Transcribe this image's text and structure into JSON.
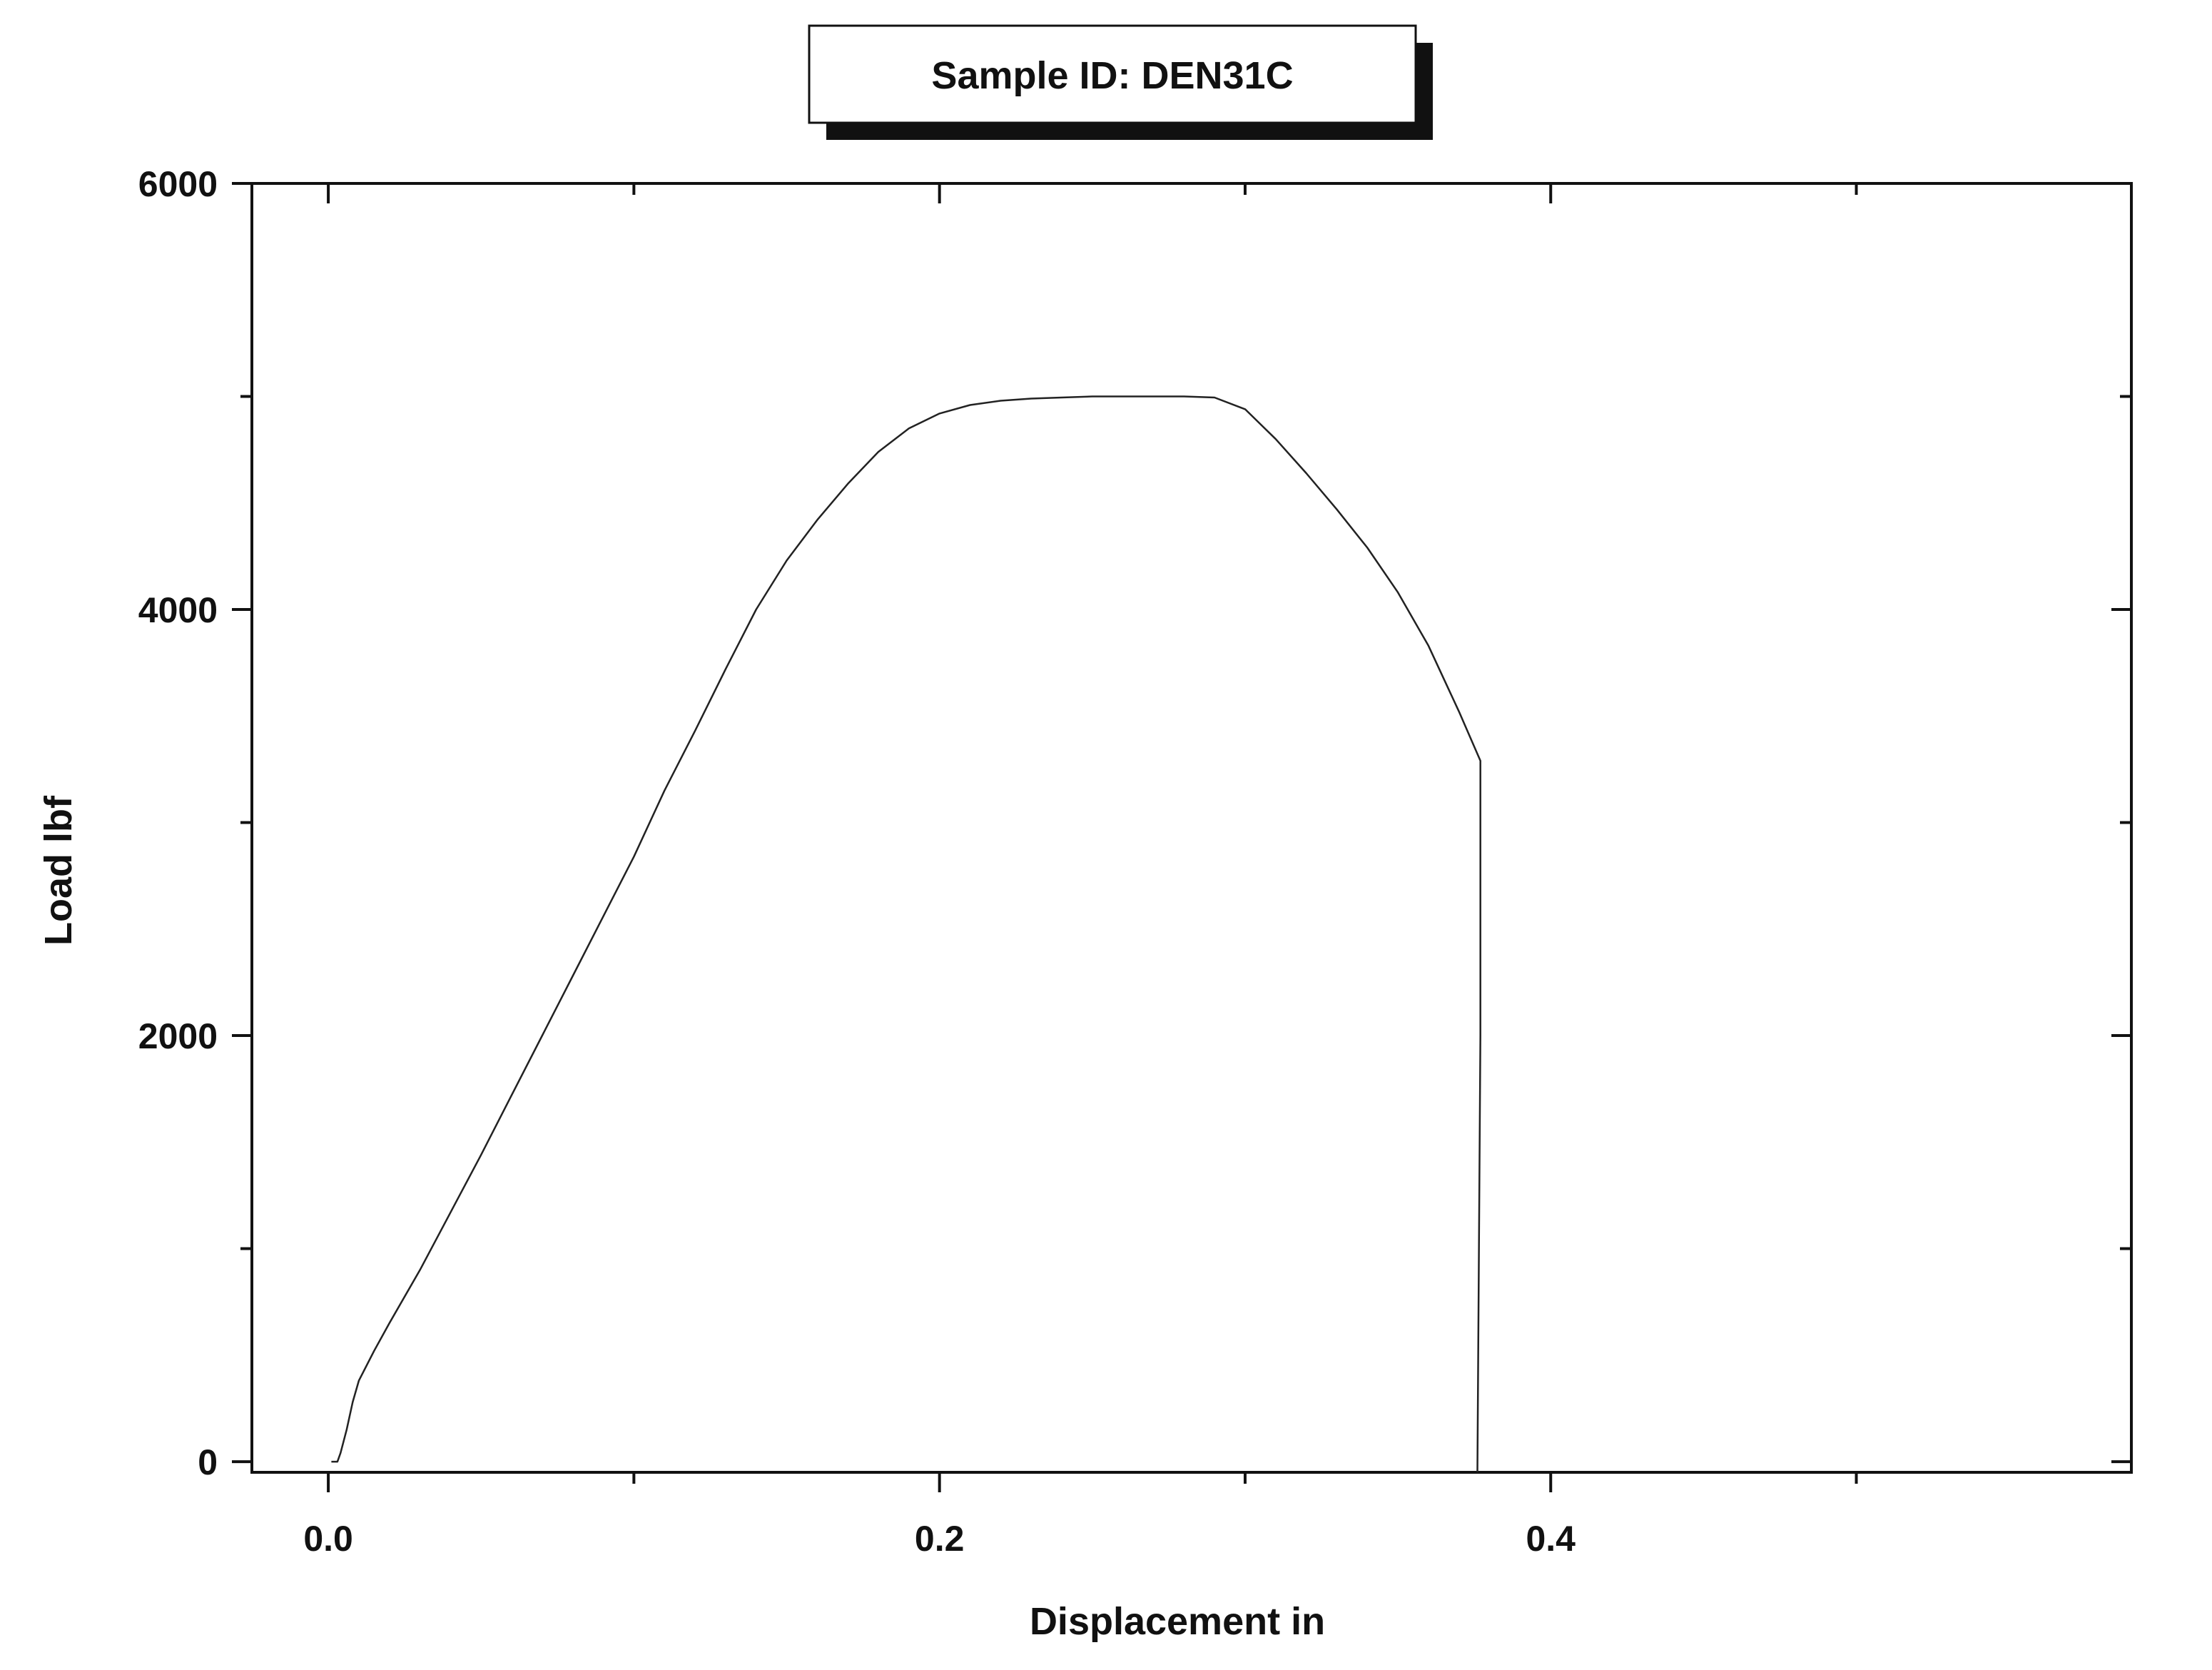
{
  "chart_data": {
    "type": "line",
    "title": "Sample ID: DEN31C",
    "xlabel": "Displacement in",
    "ylabel": "Load lbf",
    "xlim": [
      -0.025,
      0.59
    ],
    "ylim": [
      -50,
      6000
    ],
    "x_major_ticks": [
      0.0,
      0.2,
      0.4
    ],
    "x_tick_labels": [
      "0.0",
      "0.2",
      "0.4"
    ],
    "x_minor_ticks": [
      0.1,
      0.3,
      0.5
    ],
    "y_major_ticks": [
      0,
      2000,
      4000,
      6000
    ],
    "y_tick_labels": [
      "0",
      "2000",
      "4000",
      "6000"
    ],
    "y_minor_ticks": [
      1000,
      3000,
      5000
    ],
    "grid": false,
    "legend": "none",
    "series": [
      {
        "color": "#222222",
        "x": [
          0.001,
          0.003,
          0.004,
          0.006,
          0.008,
          0.01,
          0.015,
          0.02,
          0.03,
          0.04,
          0.05,
          0.06,
          0.07,
          0.08,
          0.09,
          0.1,
          0.11,
          0.12,
          0.13,
          0.14,
          0.15,
          0.16,
          0.17,
          0.18,
          0.19,
          0.2,
          0.21,
          0.22,
          0.23,
          0.24,
          0.25,
          0.26,
          0.27,
          0.28,
          0.29,
          0.3,
          0.31,
          0.32,
          0.33,
          0.34,
          0.35,
          0.36,
          0.37,
          0.377,
          0.377,
          0.376
        ],
        "y": [
          0,
          0,
          40,
          150,
          280,
          380,
          520,
          650,
          900,
          1170,
          1440,
          1720,
          2000,
          2280,
          2560,
          2840,
          3150,
          3430,
          3720,
          4000,
          4230,
          4420,
          4590,
          4740,
          4850,
          4920,
          4960,
          4980,
          4990,
          4995,
          5000,
          5000,
          5000,
          5000,
          4995,
          4940,
          4800,
          4640,
          4470,
          4290,
          4080,
          3830,
          3520,
          3290,
          2000,
          -50
        ]
      }
    ]
  }
}
